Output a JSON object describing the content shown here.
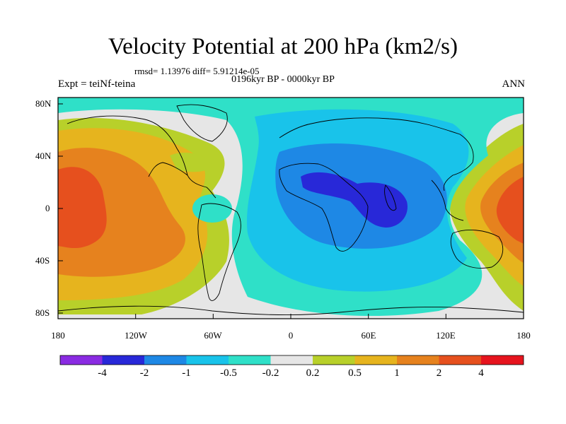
{
  "title": "Velocity Potential at 200 hPa (km2/s)",
  "stats": "rmsd= 1.13976 diff= 5.91214e-05",
  "period": "0196kyr BP - 0000kyr BP",
  "experiment": "Expt = teiNf-teina",
  "season": "ANN",
  "axes": {
    "x_ticks": [
      "180",
      "120W",
      "60W",
      "0",
      "60E",
      "120E",
      "180"
    ],
    "y_ticks": [
      "80N",
      "40N",
      "0",
      "40S",
      "80S"
    ]
  },
  "colorbar": {
    "labels": [
      "-4",
      "-2",
      "-1",
      "-0.5",
      "-0.2",
      "0.2",
      "0.5",
      "1",
      "2",
      "4"
    ],
    "colors": [
      "#8a2be2",
      "#2828d8",
      "#1e88e5",
      "#19c3ea",
      "#2fe0c8",
      "#e6e6e6",
      "#b8d02a",
      "#e6b41e",
      "#e6821e",
      "#e6501e",
      "#e6141e"
    ]
  },
  "colors": {
    "neg4": "#2828d8",
    "neg2": "#1e88e5",
    "neg1": "#19c3ea",
    "neg05": "#2fe0c8",
    "neutral": "#e6e6e6",
    "pos02": "#b8d02a",
    "pos05": "#e6b41e",
    "pos1": "#e6821e",
    "pos2": "#e6501e"
  }
}
